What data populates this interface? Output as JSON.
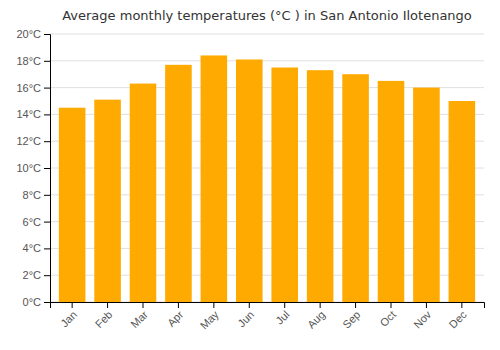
{
  "chart_data": {
    "type": "bar",
    "title": "Average monthly temperatures (°C ) in San Antonio Ilotenango",
    "categories": [
      "Jan",
      "Feb",
      "Mar",
      "Apr",
      "May",
      "Jun",
      "Jul",
      "Aug",
      "Sep",
      "Oct",
      "Nov",
      "Dec"
    ],
    "values": [
      14.5,
      15.1,
      16.3,
      17.7,
      18.4,
      18.1,
      17.5,
      17.3,
      17.0,
      16.5,
      16.0,
      15.0
    ],
    "color": "#FFAA00",
    "ylim": [
      0,
      20
    ],
    "yticks": [
      {
        "value": 0,
        "label": "0°C"
      },
      {
        "value": 2,
        "label": "2°C"
      },
      {
        "value": 4,
        "label": "4°C"
      },
      {
        "value": 6,
        "label": "6°C"
      },
      {
        "value": 8,
        "label": "8°C"
      },
      {
        "value": 10,
        "label": "10°C"
      },
      {
        "value": 12,
        "label": "12°C"
      },
      {
        "value": 14,
        "label": "14°C"
      },
      {
        "value": 16,
        "label": "16°C"
      },
      {
        "value": 18,
        "label": "18°C"
      },
      {
        "value": 20,
        "label": "20°C"
      }
    ],
    "grid": true
  }
}
